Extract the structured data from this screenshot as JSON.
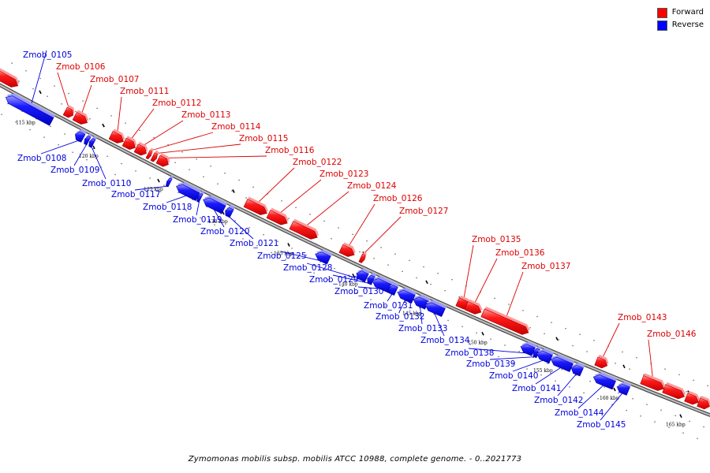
{
  "legend": {
    "forward_label": "Forward",
    "reverse_label": "Reverse",
    "forward_color": "#ff0000",
    "reverse_color": "#0000ff"
  },
  "caption": "Zymomonas mobilis subsp. mobilis ATCC 10988, complete genome. - 0..2021773",
  "scale_labels": [
    "115 kbp",
    "120 kbp",
    "125 kbp",
    "130 kbp",
    "135 kbp",
    "140 kbp",
    "145 kbp",
    "150 kbp",
    "155 kbp",
    "160 kbp",
    "165 kbp"
  ],
  "genes": [
    {
      "name": "Zmob_0105",
      "strand": "reverse"
    },
    {
      "name": "Zmob_0106",
      "strand": "forward"
    },
    {
      "name": "Zmob_0107",
      "strand": "forward"
    },
    {
      "name": "Zmob_0108",
      "strand": "reverse"
    },
    {
      "name": "Zmob_0109",
      "strand": "reverse"
    },
    {
      "name": "Zmob_0110",
      "strand": "reverse"
    },
    {
      "name": "Zmob_0111",
      "strand": "forward"
    },
    {
      "name": "Zmob_0112",
      "strand": "forward"
    },
    {
      "name": "Zmob_0113",
      "strand": "forward"
    },
    {
      "name": "Zmob_0114",
      "strand": "forward"
    },
    {
      "name": "Zmob_0115",
      "strand": "forward"
    },
    {
      "name": "Zmob_0116",
      "strand": "forward"
    },
    {
      "name": "Zmob_0117",
      "strand": "reverse"
    },
    {
      "name": "Zmob_0118",
      "strand": "reverse"
    },
    {
      "name": "Zmob_0119",
      "strand": "reverse"
    },
    {
      "name": "Zmob_0120",
      "strand": "reverse"
    },
    {
      "name": "Zmob_0121",
      "strand": "reverse"
    },
    {
      "name": "Zmob_0122",
      "strand": "forward"
    },
    {
      "name": "Zmob_0123",
      "strand": "forward"
    },
    {
      "name": "Zmob_0124",
      "strand": "forward"
    },
    {
      "name": "Zmob_0125",
      "strand": "reverse"
    },
    {
      "name": "Zmob_0126",
      "strand": "forward"
    },
    {
      "name": "Zmob_0127",
      "strand": "forward"
    },
    {
      "name": "Zmob_0128",
      "strand": "reverse"
    },
    {
      "name": "Zmob_0129",
      "strand": "reverse"
    },
    {
      "name": "Zmob_0130",
      "strand": "reverse"
    },
    {
      "name": "Zmob_0131",
      "strand": "reverse"
    },
    {
      "name": "Zmob_0132",
      "strand": "reverse"
    },
    {
      "name": "Zmob_0133",
      "strand": "reverse"
    },
    {
      "name": "Zmob_0134",
      "strand": "reverse"
    },
    {
      "name": "Zmob_0135",
      "strand": "forward"
    },
    {
      "name": "Zmob_0136",
      "strand": "forward"
    },
    {
      "name": "Zmob_0137",
      "strand": "forward"
    },
    {
      "name": "Zmob_0138",
      "strand": "reverse"
    },
    {
      "name": "Zmob_0139",
      "strand": "reverse"
    },
    {
      "name": "Zmob_0140",
      "strand": "reverse"
    },
    {
      "name": "Zmob_0141",
      "strand": "reverse"
    },
    {
      "name": "Zmob_0142",
      "strand": "reverse"
    },
    {
      "name": "Zmob_0143",
      "strand": "forward"
    },
    {
      "name": "Zmob_0144",
      "strand": "reverse"
    },
    {
      "name": "Zmob_0145",
      "strand": "reverse"
    },
    {
      "name": "Zmob_0146",
      "strand": "forward"
    }
  ]
}
